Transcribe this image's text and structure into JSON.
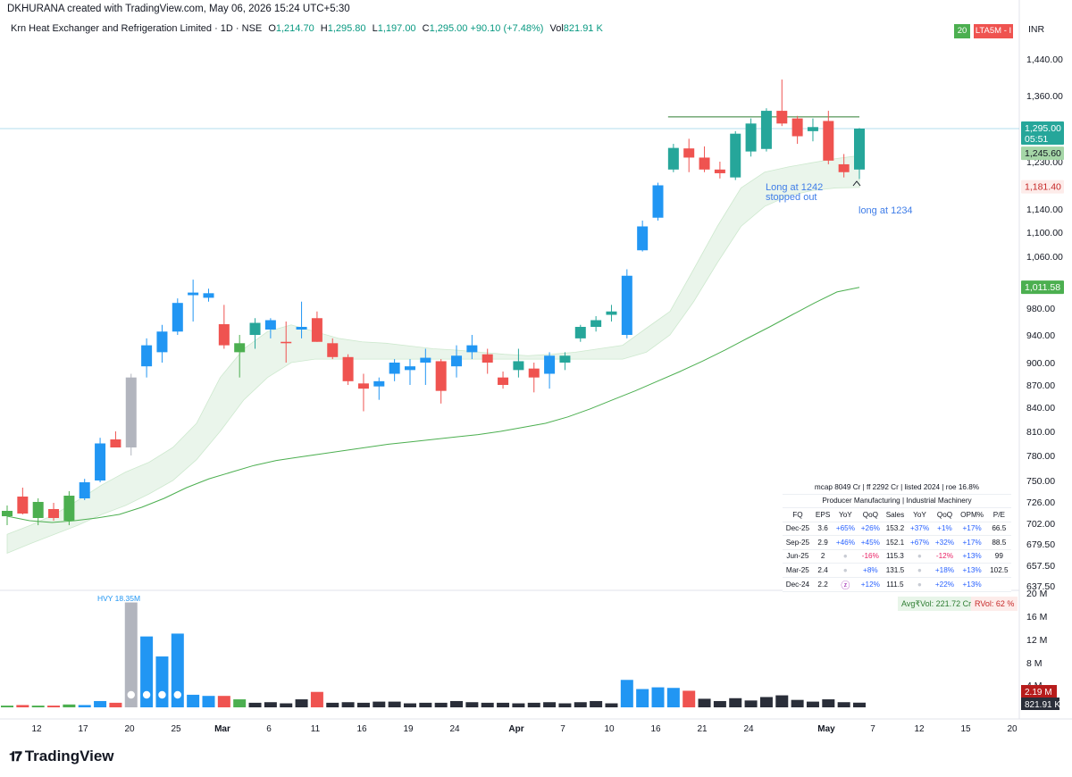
{
  "header": {
    "text": "DKHURANA created with TradingView.com, May 06, 2026 15:24 UTC+5:30"
  },
  "legend": {
    "symbol": "Krn Heat Exchanger and Refrigeration Limited · 1D · NSE",
    "o_label": "O",
    "o": "1,214.70",
    "h_label": "H",
    "h": "1,295.80",
    "l_label": "L",
    "l": "1,197.00",
    "c_label": "C",
    "c": "1,295.00",
    "change": "+90.10 (+7.48%)",
    "vol_label": "Vol",
    "vol": "821.91 K"
  },
  "badges": {
    "b1": "20",
    "b2": "LTA5M - I",
    "currency": "INR"
  },
  "price_scale": {
    "ticks": [
      "1,440.00",
      "1,360.00",
      "1,230.00",
      "1,140.00",
      "1,100.00",
      "1,060.00",
      "980.00",
      "940.00",
      "900.00",
      "870.00",
      "840.00",
      "810.00",
      "780.00",
      "750.00",
      "726.00",
      "702.00",
      "679.50",
      "657.50",
      "637.50"
    ],
    "last_price": "1,295.00",
    "countdown": "05:51",
    "label_ema": "1,245.60",
    "label_red": "1,181.40",
    "label_ma": "1,011.58"
  },
  "volume_scale": {
    "ticks": [
      "20 M",
      "16 M",
      "12 M",
      "8 M",
      "4 M"
    ],
    "label_red": "2.19 M",
    "label_last": "821.91 K"
  },
  "time_axis": {
    "ticks": [
      "12",
      "17",
      "20",
      "25",
      "Mar",
      "6",
      "11",
      "16",
      "19",
      "24",
      "Apr",
      "7",
      "10",
      "16",
      "21",
      "24",
      "May",
      "7",
      "12",
      "15",
      "20"
    ]
  },
  "annotations": {
    "a1_line1": "Long at 1242",
    "a1_line2": "stopped out",
    "a2": "long at 1234",
    "hvy": "HVY 18.35M"
  },
  "volume_info": {
    "avg": "Avg₹Vol: 221.72 Cr",
    "rvol": "RVol: 62 %"
  },
  "fundamentals": {
    "summary": "mcap 8049 Cr  |  ff 2292 Cr  |  listed 2024  |  roe 16.8%",
    "sector": "Producer Manufacturing  |  Industrial Machinery",
    "headers": [
      "FQ",
      "EPS",
      "YoY",
      "QoQ",
      "Sales",
      "YoY",
      "QoQ",
      "OPM%",
      "P/E"
    ],
    "rows": [
      [
        "Dec-25",
        "3.6",
        "+65%",
        "+26%",
        "153.2",
        "+37%",
        "+1%",
        "+17%",
        "66.5"
      ],
      [
        "Sep-25",
        "2.9",
        "+46%",
        "+45%",
        "152.1",
        "+67%",
        "+32%",
        "+17%",
        "88.5"
      ],
      [
        "Jun-25",
        "2",
        "",
        "-16%",
        "115.3",
        "",
        "-12%",
        "+13%",
        "99"
      ],
      [
        "Mar-25",
        "2.4",
        "",
        "+8%",
        "131.5",
        "",
        "+18%",
        "+13%",
        "102.5"
      ],
      [
        "Dec-24",
        "2.2",
        "",
        "+12%",
        "111.5",
        "",
        "+22%",
        "+13%",
        ""
      ]
    ]
  },
  "logo": {
    "text": "TradingView"
  },
  "colors": {
    "up_blue": "#2196f3",
    "up_green": "#4caf50",
    "teal": "#26a69a",
    "down": "#ef5350",
    "gray": "#b2b5be",
    "black_vol": "#2a2e39",
    "ma": "#4caf50",
    "band": "#e8f5e9"
  },
  "chart_data": {
    "type": "candlestick",
    "price_axis": {
      "type": "custom-ticks",
      "ylim": [
        637.5,
        1440
      ]
    },
    "volume_axis": {
      "ylim": [
        0,
        20
      ],
      "unit": "M"
    },
    "candles": [
      {
        "x": "Feb 10",
        "o": 710,
        "h": 722,
        "l": 700,
        "c": 716,
        "color": "up_green",
        "vol": 0.3
      },
      {
        "x": "Feb 11",
        "o": 732,
        "h": 742,
        "l": 712,
        "c": 713,
        "color": "down",
        "vol": 0.4
      },
      {
        "x": "Feb 12",
        "o": 708,
        "h": 730,
        "l": 700,
        "c": 726,
        "color": "up_green",
        "vol": 0.3
      },
      {
        "x": "Feb 13",
        "o": 718,
        "h": 725,
        "l": 705,
        "c": 708,
        "color": "down",
        "vol": 0.3
      },
      {
        "x": "Feb 16",
        "o": 705,
        "h": 738,
        "l": 700,
        "c": 733,
        "color": "up_green",
        "vol": 0.5
      },
      {
        "x": "Feb 17",
        "o": 730,
        "h": 752,
        "l": 728,
        "c": 748,
        "color": "up_blue",
        "vol": 0.4
      },
      {
        "x": "Feb 18",
        "o": 750,
        "h": 802,
        "l": 748,
        "c": 795,
        "color": "up_blue",
        "vol": 1.1
      },
      {
        "x": "Feb 19",
        "o": 800,
        "h": 810,
        "l": 790,
        "c": 790,
        "color": "down",
        "vol": 0.8
      },
      {
        "x": "Feb 20",
        "o": 790,
        "h": 885,
        "l": 780,
        "c": 880,
        "color": "gray",
        "vol": 18.35
      },
      {
        "x": "Feb 23",
        "o": 895,
        "h": 935,
        "l": 880,
        "c": 925,
        "color": "up_blue",
        "vol": 12.4
      },
      {
        "x": "Feb 24",
        "o": 915,
        "h": 955,
        "l": 900,
        "c": 945,
        "color": "up_blue",
        "vol": 8.9
      },
      {
        "x": "Feb 25",
        "o": 945,
        "h": 995,
        "l": 940,
        "c": 988,
        "color": "up_blue",
        "vol": 12.9
      },
      {
        "x": "Feb 26",
        "o": 1000,
        "h": 1024,
        "l": 960,
        "c": 1004,
        "color": "up_blue",
        "vol": 2.2
      },
      {
        "x": "Feb 27",
        "o": 1003,
        "h": 1010,
        "l": 990,
        "c": 996,
        "color": "up_blue",
        "vol": 2.0
      },
      {
        "x": "Mar 2",
        "o": 956,
        "h": 985,
        "l": 920,
        "c": 925,
        "color": "down",
        "vol": 2.0
      },
      {
        "x": "Mar 3",
        "o": 915,
        "h": 940,
        "l": 880,
        "c": 928,
        "color": "up_green",
        "vol": 1.4
      },
      {
        "x": "Mar 4",
        "o": 940,
        "h": 965,
        "l": 920,
        "c": 958,
        "color": "teal",
        "vol": 0.8
      },
      {
        "x": "Mar 5",
        "o": 948,
        "h": 965,
        "l": 935,
        "c": 962,
        "color": "up_blue",
        "vol": 0.9
      },
      {
        "x": "Mar 6",
        "o": 930,
        "h": 960,
        "l": 900,
        "c": 928,
        "color": "down",
        "vol": 0.7
      },
      {
        "x": "Mar 9",
        "o": 948,
        "h": 990,
        "l": 935,
        "c": 952,
        "color": "up_blue",
        "vol": 1.4
      },
      {
        "x": "Mar 10",
        "o": 965,
        "h": 975,
        "l": 930,
        "c": 930,
        "color": "down",
        "vol": 2.7
      },
      {
        "x": "Mar 11",
        "o": 928,
        "h": 935,
        "l": 905,
        "c": 908,
        "color": "down",
        "vol": 0.8
      },
      {
        "x": "Mar 12",
        "o": 908,
        "h": 912,
        "l": 870,
        "c": 875,
        "color": "down",
        "vol": 0.9
      },
      {
        "x": "Mar 13",
        "o": 872,
        "h": 885,
        "l": 835,
        "c": 865,
        "color": "down",
        "vol": 0.8
      },
      {
        "x": "Mar 16",
        "o": 868,
        "h": 880,
        "l": 850,
        "c": 875,
        "color": "up_blue",
        "vol": 1.0
      },
      {
        "x": "Mar 17",
        "o": 885,
        "h": 905,
        "l": 875,
        "c": 900,
        "color": "up_blue",
        "vol": 1.0
      },
      {
        "x": "Mar 18",
        "o": 890,
        "h": 905,
        "l": 870,
        "c": 895,
        "color": "up_blue",
        "vol": 0.7
      },
      {
        "x": "Mar 19",
        "o": 900,
        "h": 920,
        "l": 870,
        "c": 907,
        "color": "up_blue",
        "vol": 0.8
      },
      {
        "x": "Mar 20",
        "o": 902,
        "h": 905,
        "l": 845,
        "c": 862,
        "color": "down",
        "vol": 0.8
      },
      {
        "x": "Mar 23",
        "o": 895,
        "h": 925,
        "l": 880,
        "c": 910,
        "color": "up_blue",
        "vol": 1.1
      },
      {
        "x": "Mar 24",
        "o": 915,
        "h": 940,
        "l": 905,
        "c": 925,
        "color": "up_blue",
        "vol": 0.9
      },
      {
        "x": "Mar 25",
        "o": 912,
        "h": 920,
        "l": 885,
        "c": 900,
        "color": "down",
        "vol": 0.8
      },
      {
        "x": "Mar 26",
        "o": 880,
        "h": 888,
        "l": 865,
        "c": 870,
        "color": "down",
        "vol": 0.8
      },
      {
        "x": "Mar 27",
        "o": 890,
        "h": 920,
        "l": 880,
        "c": 902,
        "color": "teal",
        "vol": 0.7
      },
      {
        "x": "Mar 30",
        "o": 892,
        "h": 900,
        "l": 860,
        "c": 880,
        "color": "down",
        "vol": 0.8
      },
      {
        "x": "Mar 31",
        "o": 885,
        "h": 915,
        "l": 865,
        "c": 910,
        "color": "up_blue",
        "vol": 0.9
      },
      {
        "x": "Apr 1",
        "o": 900,
        "h": 915,
        "l": 890,
        "c": 910,
        "color": "teal",
        "vol": 0.7
      },
      {
        "x": "Apr 6",
        "o": 935,
        "h": 955,
        "l": 930,
        "c": 952,
        "color": "teal",
        "vol": 0.9
      },
      {
        "x": "Apr 7",
        "o": 952,
        "h": 968,
        "l": 945,
        "c": 962,
        "color": "teal",
        "vol": 1.1
      },
      {
        "x": "Apr 8",
        "o": 970,
        "h": 985,
        "l": 960,
        "c": 975,
        "color": "teal",
        "vol": 0.7
      },
      {
        "x": "Apr 9",
        "o": 940,
        "h": 1040,
        "l": 935,
        "c": 1030,
        "color": "up_blue",
        "vol": 4.8
      },
      {
        "x": "Apr 10",
        "o": 1070,
        "h": 1120,
        "l": 1068,
        "c": 1110,
        "color": "up_blue",
        "vol": 3.2
      },
      {
        "x": "Apr 13",
        "o": 1125,
        "h": 1190,
        "l": 1120,
        "c": 1185,
        "color": "up_blue",
        "vol": 3.5
      },
      {
        "x": "Apr 15",
        "o": 1215,
        "h": 1265,
        "l": 1210,
        "c": 1257,
        "color": "teal",
        "vol": 3.4
      },
      {
        "x": "Apr 16",
        "o": 1256,
        "h": 1275,
        "l": 1210,
        "c": 1238,
        "color": "down",
        "vol": 2.9
      },
      {
        "x": "Apr 17",
        "o": 1238,
        "h": 1260,
        "l": 1210,
        "c": 1215,
        "color": "down",
        "vol": 1.5
      },
      {
        "x": "Apr 20",
        "o": 1215,
        "h": 1230,
        "l": 1198,
        "c": 1208,
        "color": "down",
        "vol": 1.1
      },
      {
        "x": "Apr 21",
        "o": 1200,
        "h": 1290,
        "l": 1195,
        "c": 1285,
        "color": "teal",
        "vol": 1.6
      },
      {
        "x": "Apr 22",
        "o": 1250,
        "h": 1315,
        "l": 1240,
        "c": 1305,
        "color": "teal",
        "vol": 1.2
      },
      {
        "x": "Apr 23",
        "o": 1255,
        "h": 1335,
        "l": 1250,
        "c": 1330,
        "color": "teal",
        "vol": 1.8
      },
      {
        "x": "Apr 24",
        "o": 1330,
        "h": 1395,
        "l": 1300,
        "c": 1305,
        "color": "down",
        "vol": 2.1
      },
      {
        "x": "Apr 27",
        "o": 1315,
        "h": 1320,
        "l": 1265,
        "c": 1280,
        "color": "down",
        "vol": 1.3
      },
      {
        "x": "Apr 28",
        "o": 1290,
        "h": 1315,
        "l": 1270,
        "c": 1298,
        "color": "teal",
        "vol": 1.0
      },
      {
        "x": "Apr 29",
        "o": 1310,
        "h": 1330,
        "l": 1225,
        "c": 1232,
        "color": "down",
        "vol": 1.4
      },
      {
        "x": "Apr 30",
        "o": 1225,
        "h": 1245,
        "l": 1200,
        "c": 1210,
        "color": "down",
        "vol": 0.9
      },
      {
        "x": "May 6",
        "o": 1215,
        "h": 1296,
        "l": 1197,
        "c": 1295,
        "color": "teal",
        "vol": 0.82
      }
    ],
    "ma_line": [
      710,
      705,
      703,
      705,
      708,
      712,
      720,
      730,
      742,
      752,
      760,
      768,
      774,
      778,
      782,
      786,
      790,
      794,
      797,
      800,
      803,
      806,
      810,
      815,
      820,
      828,
      838,
      850,
      862,
      875,
      888,
      902,
      918,
      935,
      952,
      970,
      988,
      1005,
      1012
    ],
    "ema_band_upper": [
      690,
      700,
      712,
      728,
      745,
      760,
      772,
      790,
      820,
      880,
      920,
      945,
      955,
      945,
      935,
      930,
      928,
      924,
      920,
      918,
      915,
      912,
      910,
      912,
      915,
      920,
      925,
      950,
      975,
      1040,
      1110,
      1180,
      1210,
      1220,
      1228,
      1236,
      1242
    ],
    "ema_band_lower": [
      670,
      680,
      690,
      700,
      712,
      722,
      735,
      750,
      775,
      810,
      850,
      880,
      900,
      905,
      905,
      905,
      905,
      905,
      905,
      905,
      905,
      905,
      905,
      905,
      905,
      905,
      905,
      915,
      940,
      990,
      1050,
      1110,
      1145,
      1165,
      1175,
      1180,
      1181
    ],
    "hline": {
      "value": 1318,
      "from": "Apr 15",
      "to": "May 6"
    },
    "last_line": 1295
  }
}
